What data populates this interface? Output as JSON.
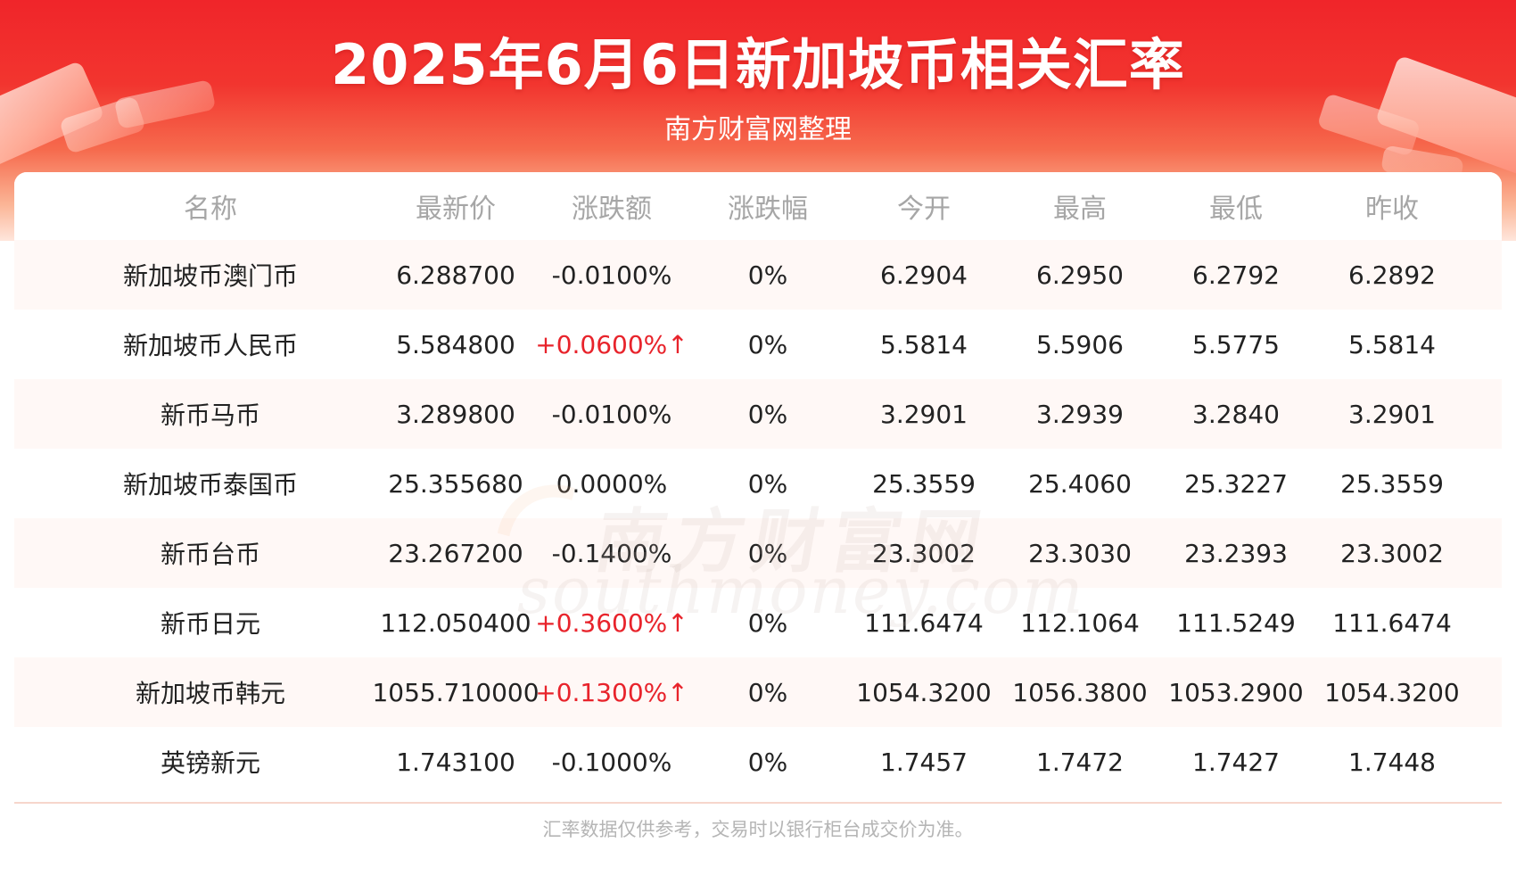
{
  "title": "2025年6月6日新加坡币相关汇率",
  "subtitle": "南方财富网整理",
  "columns": [
    "名称",
    "最新价",
    "涨跌额",
    "涨跌幅",
    "今开",
    "最高",
    "最低",
    "昨收"
  ],
  "rows": [
    {
      "name": "新加坡币澳门币",
      "latest": "6.288700",
      "change": "-0.0100%",
      "pct": "0%",
      "open": "6.2904",
      "high": "6.2950",
      "low": "6.2792",
      "prev": "6.2892",
      "up": false
    },
    {
      "name": "新加坡币人民币",
      "latest": "5.584800",
      "change": "+0.0600%↑",
      "pct": "0%",
      "open": "5.5814",
      "high": "5.5906",
      "low": "5.5775",
      "prev": "5.5814",
      "up": true
    },
    {
      "name": "新币马币",
      "latest": "3.289800",
      "change": "-0.0100%",
      "pct": "0%",
      "open": "3.2901",
      "high": "3.2939",
      "low": "3.2840",
      "prev": "3.2901",
      "up": false
    },
    {
      "name": "新加坡币泰国币",
      "latest": "25.355680",
      "change": "0.0000%",
      "pct": "0%",
      "open": "25.3559",
      "high": "25.4060",
      "low": "25.3227",
      "prev": "25.3559",
      "up": false
    },
    {
      "name": "新币台币",
      "latest": "23.267200",
      "change": "-0.1400%",
      "pct": "0%",
      "open": "23.3002",
      "high": "23.3030",
      "low": "23.2393",
      "prev": "23.3002",
      "up": false
    },
    {
      "name": "新币日元",
      "latest": "112.050400",
      "change": "+0.3600%↑",
      "pct": "0%",
      "open": "111.6474",
      "high": "112.1064",
      "low": "111.5249",
      "prev": "111.6474",
      "up": true
    },
    {
      "name": "新加坡币韩元",
      "latest": "1055.710000",
      "change": "+0.1300%↑",
      "pct": "0%",
      "open": "1054.3200",
      "high": "1056.3800",
      "low": "1053.2900",
      "prev": "1054.3200",
      "up": true
    },
    {
      "name": "英镑新元",
      "latest": "1.743100",
      "change": "-0.1000%",
      "pct": "0%",
      "open": "1.7457",
      "high": "1.7472",
      "low": "1.7427",
      "prev": "1.7448",
      "up": false
    }
  ],
  "watermark": {
    "cn": "南方财富网",
    "en": "southmoney.com"
  },
  "footnote": "汇率数据仅供参考，交易时以银行柜台成交价为准。",
  "colors": {
    "header_red": "#f0252a",
    "up_red": "#e8232b",
    "header_text": "#a6a6a6",
    "zebra": "#fff8f6"
  }
}
